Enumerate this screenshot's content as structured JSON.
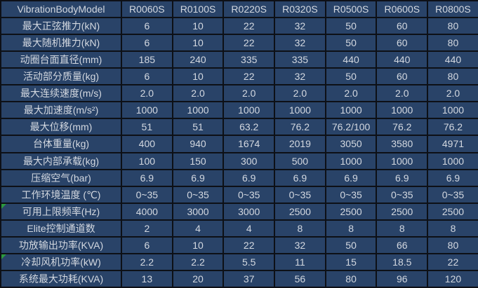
{
  "table": {
    "model_label": "VibrationBodyModel",
    "models": [
      "R0060S",
      "R0100S",
      "R0220S",
      "R0320S",
      "R0500S",
      "R0600S",
      "R0800S"
    ],
    "rows": [
      {
        "label": "最大正弦推力(kN)",
        "flag": false,
        "values": [
          "6",
          "10",
          "22",
          "32",
          "50",
          "60",
          "80"
        ]
      },
      {
        "label": "最大随机推力(kN)",
        "flag": false,
        "values": [
          "6",
          "10",
          "22",
          "32",
          "50",
          "60",
          "80"
        ]
      },
      {
        "label": "动圈台面直径(mm)",
        "flag": false,
        "values": [
          "185",
          "240",
          "335",
          "335",
          "440",
          "440",
          "440"
        ]
      },
      {
        "label": "活动部分质量(kg)",
        "flag": false,
        "values": [
          "6",
          "10",
          "22",
          "32",
          "50",
          "60",
          "80"
        ]
      },
      {
        "label": "最大连续速度(m/s)",
        "flag": false,
        "values": [
          "2.0",
          "2.0",
          "2.0",
          "2.0",
          "2.0",
          "2.0",
          "2.0"
        ]
      },
      {
        "label": "最大加速度(m/s²)",
        "flag": false,
        "values": [
          "1000",
          "1000",
          "1000",
          "1000",
          "1000",
          "1000",
          "1000"
        ]
      },
      {
        "label": "最大位移(mm)",
        "flag": false,
        "values": [
          "51",
          "51",
          "63.2",
          "76.2",
          "76.2/100",
          "76.2",
          "76.2"
        ]
      },
      {
        "label": "台体重量(kg)",
        "flag": false,
        "values": [
          "400",
          "940",
          "1674",
          "2019",
          "3050",
          "3580",
          "4971"
        ]
      },
      {
        "label": "最大内部承载(kg)",
        "flag": false,
        "values": [
          "100",
          "150",
          "300",
          "500",
          "1000",
          "1000",
          "1000"
        ]
      },
      {
        "label": "压缩空气(bar)",
        "flag": false,
        "values": [
          "6.9",
          "6.9",
          "6.9",
          "6.9",
          "6.9",
          "6.9",
          "6.9"
        ]
      },
      {
        "label": "工作环境温度 (℃)",
        "flag": false,
        "values": [
          "0~35",
          "0~35",
          "0~35",
          "0~35",
          "0~35",
          "0~35",
          "0~35"
        ]
      },
      {
        "label": "可用上限频率(Hz)",
        "flag": true,
        "values": [
          "4000",
          "3000",
          "3000",
          "2500",
          "2500",
          "2500",
          "2500"
        ]
      },
      {
        "label": "Elite控制通道数",
        "flag": false,
        "values": [
          "2",
          "4",
          "4",
          "8",
          "8",
          "8",
          "8"
        ]
      },
      {
        "label": "功放输出功率(KVA)",
        "flag": false,
        "values": [
          "6",
          "10",
          "22",
          "32",
          "50",
          "66",
          "80"
        ]
      },
      {
        "label": "冷却风机功率(kW)",
        "flag": true,
        "values": [
          "2.2",
          "2.2",
          "5.5",
          "11",
          "15",
          "18.5",
          "22"
        ]
      },
      {
        "label": "系统最大功耗(KVA)",
        "flag": false,
        "values": [
          "13",
          "20",
          "37",
          "56",
          "80",
          "96",
          "120"
        ]
      }
    ]
  },
  "icons": {
    "comment_flag": "green-triangle"
  },
  "colors": {
    "cell_bg": "#294368",
    "border": "#0d1016",
    "text": "#d3d8e0",
    "flag": "#2c9a3f"
  }
}
